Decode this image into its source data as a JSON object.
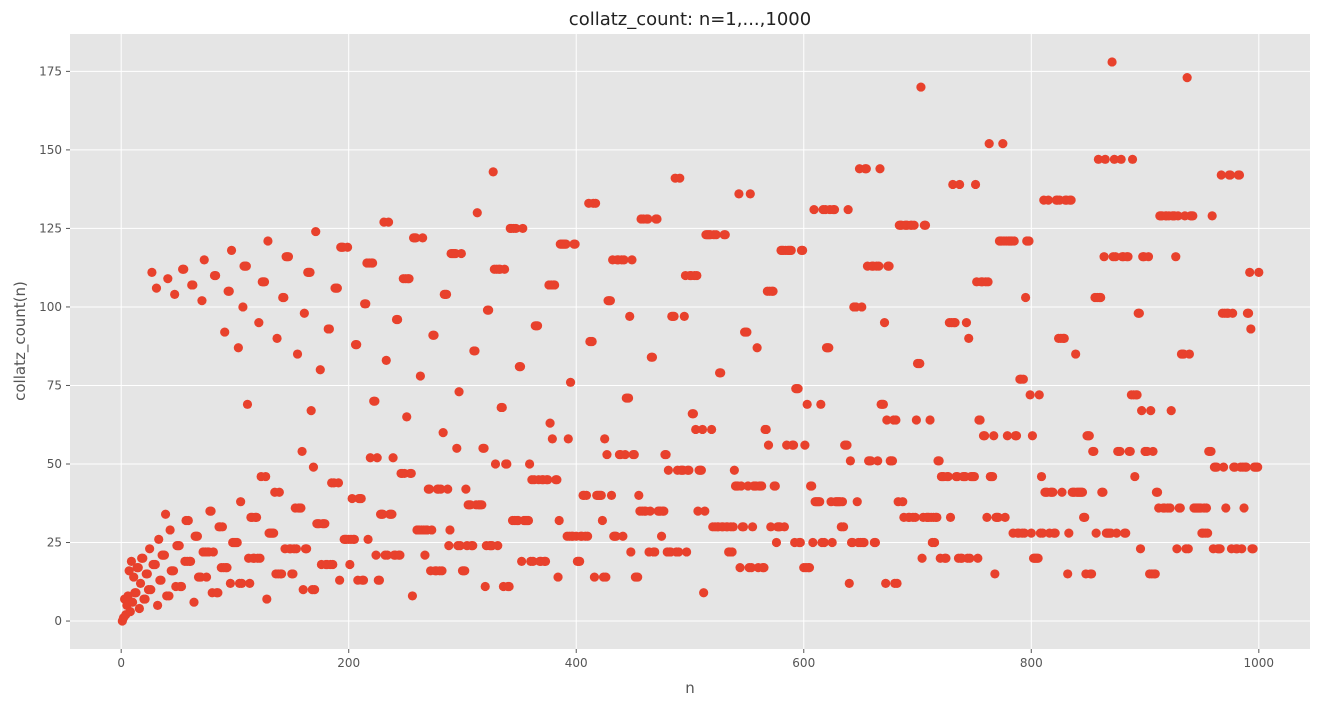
{
  "chart_data": {
    "type": "scatter",
    "title": "collatz_count: n=1,...,1000",
    "xlabel": "n",
    "ylabel": "collatz_count(n)",
    "xlim": [
      -45,
      1045
    ],
    "ylim": [
      -8.9,
      186.9
    ],
    "xticks": [
      0,
      200,
      400,
      600,
      800,
      1000
    ],
    "yticks": [
      0,
      25,
      50,
      75,
      100,
      125,
      150,
      175
    ],
    "grid": true,
    "legend": "none",
    "colors": {
      "background": "#e5e5e5",
      "marker": "#e8412c",
      "grid": "#ffffff"
    },
    "series": [
      {
        "generator": "collatz_count",
        "n_start": 1,
        "n_end": 1000
      }
    ]
  }
}
